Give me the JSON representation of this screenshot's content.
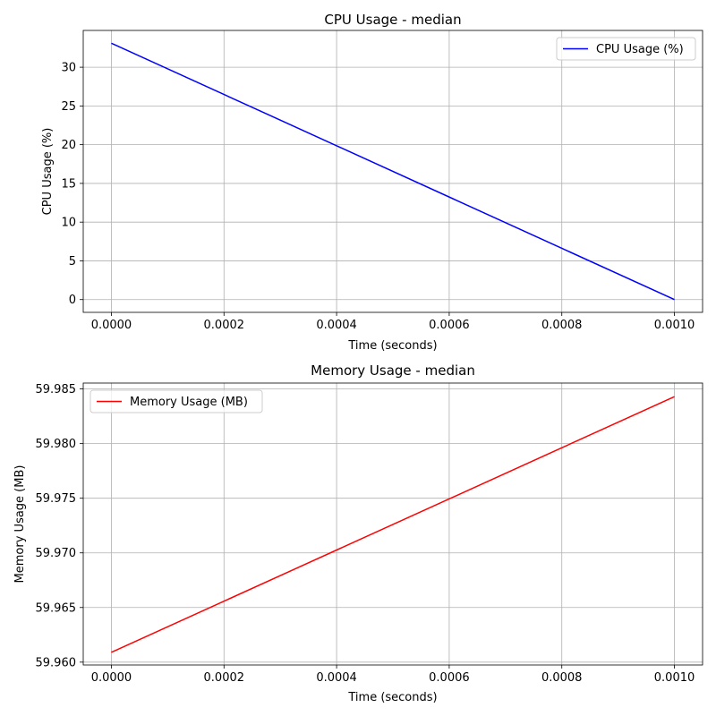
{
  "chart_data": [
    {
      "type": "line",
      "title": "CPU Usage - median",
      "xlabel": "Time (seconds)",
      "ylabel": "CPU Usage (%)",
      "xlim": [
        -5e-05,
        0.00105
      ],
      "ylim": [
        -1.65,
        34.75
      ],
      "xticks": [
        0,
        0.0002,
        0.0004,
        0.0006,
        0.0008,
        0.001
      ],
      "xtick_labels": [
        "0.0000",
        "0.0002",
        "0.0004",
        "0.0006",
        "0.0008",
        "0.0010"
      ],
      "yticks": [
        0,
        5,
        10,
        15,
        20,
        25,
        30
      ],
      "ytick_labels": [
        "0",
        "5",
        "10",
        "15",
        "20",
        "25",
        "30"
      ],
      "grid": true,
      "legend_position": "top-right",
      "series": [
        {
          "name": "CPU Usage (%)",
          "color": "#0000ff",
          "x": [
            0,
            0.001
          ],
          "y": [
            33.1,
            0
          ]
        }
      ]
    },
    {
      "type": "line",
      "title": "Memory Usage - median",
      "xlabel": "Time (seconds)",
      "ylabel": "Memory Usage (MB)",
      "xlim": [
        -5e-05,
        0.00105
      ],
      "ylim": [
        59.95974,
        59.98554
      ],
      "xticks": [
        0,
        0.0002,
        0.0004,
        0.0006,
        0.0008,
        0.001
      ],
      "xtick_labels": [
        "0.0000",
        "0.0002",
        "0.0004",
        "0.0006",
        "0.0008",
        "0.0010"
      ],
      "yticks": [
        59.96,
        59.965,
        59.97,
        59.975,
        59.98,
        59.985
      ],
      "ytick_labels": [
        "59.960",
        "59.965",
        "59.970",
        "59.975",
        "59.980",
        "59.985"
      ],
      "grid": true,
      "legend_position": "top-left",
      "series": [
        {
          "name": "Memory Usage (MB)",
          "color": "#ff0000",
          "x": [
            0,
            0.001
          ],
          "y": [
            59.9609,
            59.9843
          ]
        }
      ]
    }
  ]
}
